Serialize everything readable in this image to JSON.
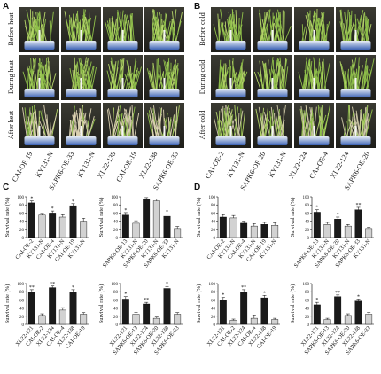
{
  "panels": [
    {
      "label": "A",
      "rows": [
        "Before heat",
        "During heat",
        "After heat"
      ],
      "columns": [
        "CAI-OE-19",
        "KY131-N",
        "SAPK6-OE-33",
        "KY131-N",
        "XL22-138",
        "CAI-OE-19",
        "XL22-138",
        "SAPK6-OE-33"
      ]
    },
    {
      "label": "B",
      "rows": [
        "Before cold",
        "During cold",
        "After cold"
      ],
      "columns": [
        "CAI-OE-2",
        "KY131-N",
        "SAPK6-OE-20",
        "KY131-N",
        "XL22-124",
        "CAI-OE-4",
        "XL22-124",
        "SAPK6-OE-20"
      ]
    }
  ],
  "chart_panels": [
    "C",
    "D"
  ],
  "chart_data": [
    {
      "type": "bar",
      "y_label": "Survival rate (%)",
      "categories": [
        "CAI-OE-2",
        "KY131-N",
        "CAI-OE-4",
        "KY131-N",
        "CAI-OE-19",
        "KY131-N"
      ],
      "values": [
        85,
        55,
        60,
        50,
        78,
        40
      ],
      "errors": [
        5,
        4,
        5,
        6,
        5,
        7
      ],
      "significance": [
        "*",
        null,
        "*",
        null,
        "*",
        null
      ],
      "colors": [
        "#1a1a1a",
        "#d2d2d2"
      ],
      "ylim": [
        0,
        100
      ],
      "yticks": [
        0,
        20,
        40,
        60,
        80,
        100
      ]
    },
    {
      "type": "bar",
      "y_label": "Survival rate (%)",
      "categories": [
        "SAPK6-OE-13",
        "KY131-N",
        "SAPK6-OE-20",
        "KY131-N",
        "SAPK6-OE-33",
        "KY131-N"
      ],
      "values": [
        55,
        35,
        95,
        90,
        52,
        22
      ],
      "errors": [
        6,
        6,
        3,
        4,
        5,
        5
      ],
      "significance": [
        "*",
        null,
        null,
        null,
        "*",
        null
      ],
      "colors": [
        "#1a1a1a",
        "#d2d2d2"
      ],
      "ylim": [
        0,
        100
      ],
      "yticks": [
        0,
        20,
        40,
        60,
        80,
        100
      ]
    },
    {
      "type": "bar",
      "y_label": "Survival rate (%)",
      "categories": [
        "XL22-121",
        "CAI-OE-2",
        "XL22-124",
        "CAI-OE-4",
        "XL22-138",
        "CAI-OE-19"
      ],
      "values": [
        80,
        22,
        90,
        35,
        80,
        25
      ],
      "errors": [
        5,
        4,
        4,
        6,
        5,
        4
      ],
      "significance": [
        "**",
        null,
        "**",
        null,
        "*",
        null
      ],
      "colors": [
        "#1a1a1a",
        "#d2d2d2"
      ],
      "ylim": [
        0,
        100
      ],
      "yticks": [
        0,
        20,
        40,
        60,
        80,
        100
      ]
    },
    {
      "type": "bar",
      "y_label": "Survival rate (%)",
      "categories": [
        "XL22-121",
        "SAPK6-OE-13",
        "XL22-124",
        "SAPK6-OE-20",
        "XL22-138",
        "SAPK6-OE-33"
      ],
      "values": [
        62,
        25,
        50,
        15,
        88,
        25
      ],
      "errors": [
        6,
        4,
        4,
        3,
        5,
        4
      ],
      "significance": [
        "*",
        null,
        "**",
        null,
        "*",
        null
      ],
      "colors": [
        "#1a1a1a",
        "#d2d2d2"
      ],
      "ylim": [
        0,
        100
      ],
      "yticks": [
        0,
        20,
        40,
        60,
        80,
        100
      ]
    },
    {
      "type": "bar",
      "y_label": "Survival rate (%)",
      "categories": [
        "CAI-OE-2",
        "KY131-N",
        "CAI-OE-4",
        "KY131-N",
        "CAI-OE-19",
        "KY131-N"
      ],
      "values": [
        50,
        48,
        35,
        28,
        32,
        30
      ],
      "errors": [
        6,
        6,
        5,
        6,
        5,
        6
      ],
      "significance": [
        null,
        null,
        null,
        null,
        null,
        null
      ],
      "colors": [
        "#1a1a1a",
        "#d2d2d2"
      ],
      "ylim": [
        0,
        100
      ],
      "yticks": [
        0,
        20,
        40,
        60,
        80,
        100
      ]
    },
    {
      "type": "bar",
      "y_label": "Survival rate (%)",
      "categories": [
        "SAPK6-OE-13",
        "KY131-N",
        "SAPK6-OE-20",
        "KY131-N",
        "SAPK6-OE-33",
        "KY131-N"
      ],
      "values": [
        62,
        32,
        45,
        28,
        68,
        22
      ],
      "errors": [
        6,
        5,
        5,
        4,
        6,
        3
      ],
      "significance": [
        "*",
        null,
        "*",
        null,
        "**",
        null
      ],
      "colors": [
        "#1a1a1a",
        "#d2d2d2"
      ],
      "ylim": [
        0,
        100
      ],
      "yticks": [
        0,
        20,
        40,
        60,
        80,
        100
      ]
    },
    {
      "type": "bar",
      "y_label": "Survival rate (%)",
      "categories": [
        "XL22-121",
        "CAI-OE-2",
        "XL22-124",
        "CAI-OE-4",
        "XL22-138",
        "CAI-OE-19"
      ],
      "values": [
        60,
        10,
        80,
        15,
        65,
        12
      ],
      "errors": [
        6,
        3,
        5,
        8,
        6,
        3
      ],
      "significance": [
        "*",
        null,
        "**",
        null,
        "*",
        null
      ],
      "colors": [
        "#1a1a1a",
        "#d2d2d2"
      ],
      "ylim": [
        0,
        100
      ],
      "yticks": [
        0,
        20,
        40,
        60,
        80,
        100
      ]
    },
    {
      "type": "bar",
      "y_label": "Survival rate (%)",
      "categories": [
        "XL22-121",
        "SAPK6-OE-13",
        "XL22-124",
        "SAPK6-OE-20",
        "XL22-138",
        "SAPK6-OE-33"
      ],
      "values": [
        48,
        12,
        68,
        22,
        57,
        25
      ],
      "errors": [
        6,
        3,
        4,
        4,
        5,
        4
      ],
      "significance": [
        "*",
        null,
        "**",
        null,
        "*",
        null
      ],
      "colors": [
        "#1a1a1a",
        "#d2d2d2"
      ],
      "ylim": [
        0,
        100
      ],
      "yticks": [
        0,
        20,
        40,
        60,
        80,
        100
      ]
    }
  ]
}
